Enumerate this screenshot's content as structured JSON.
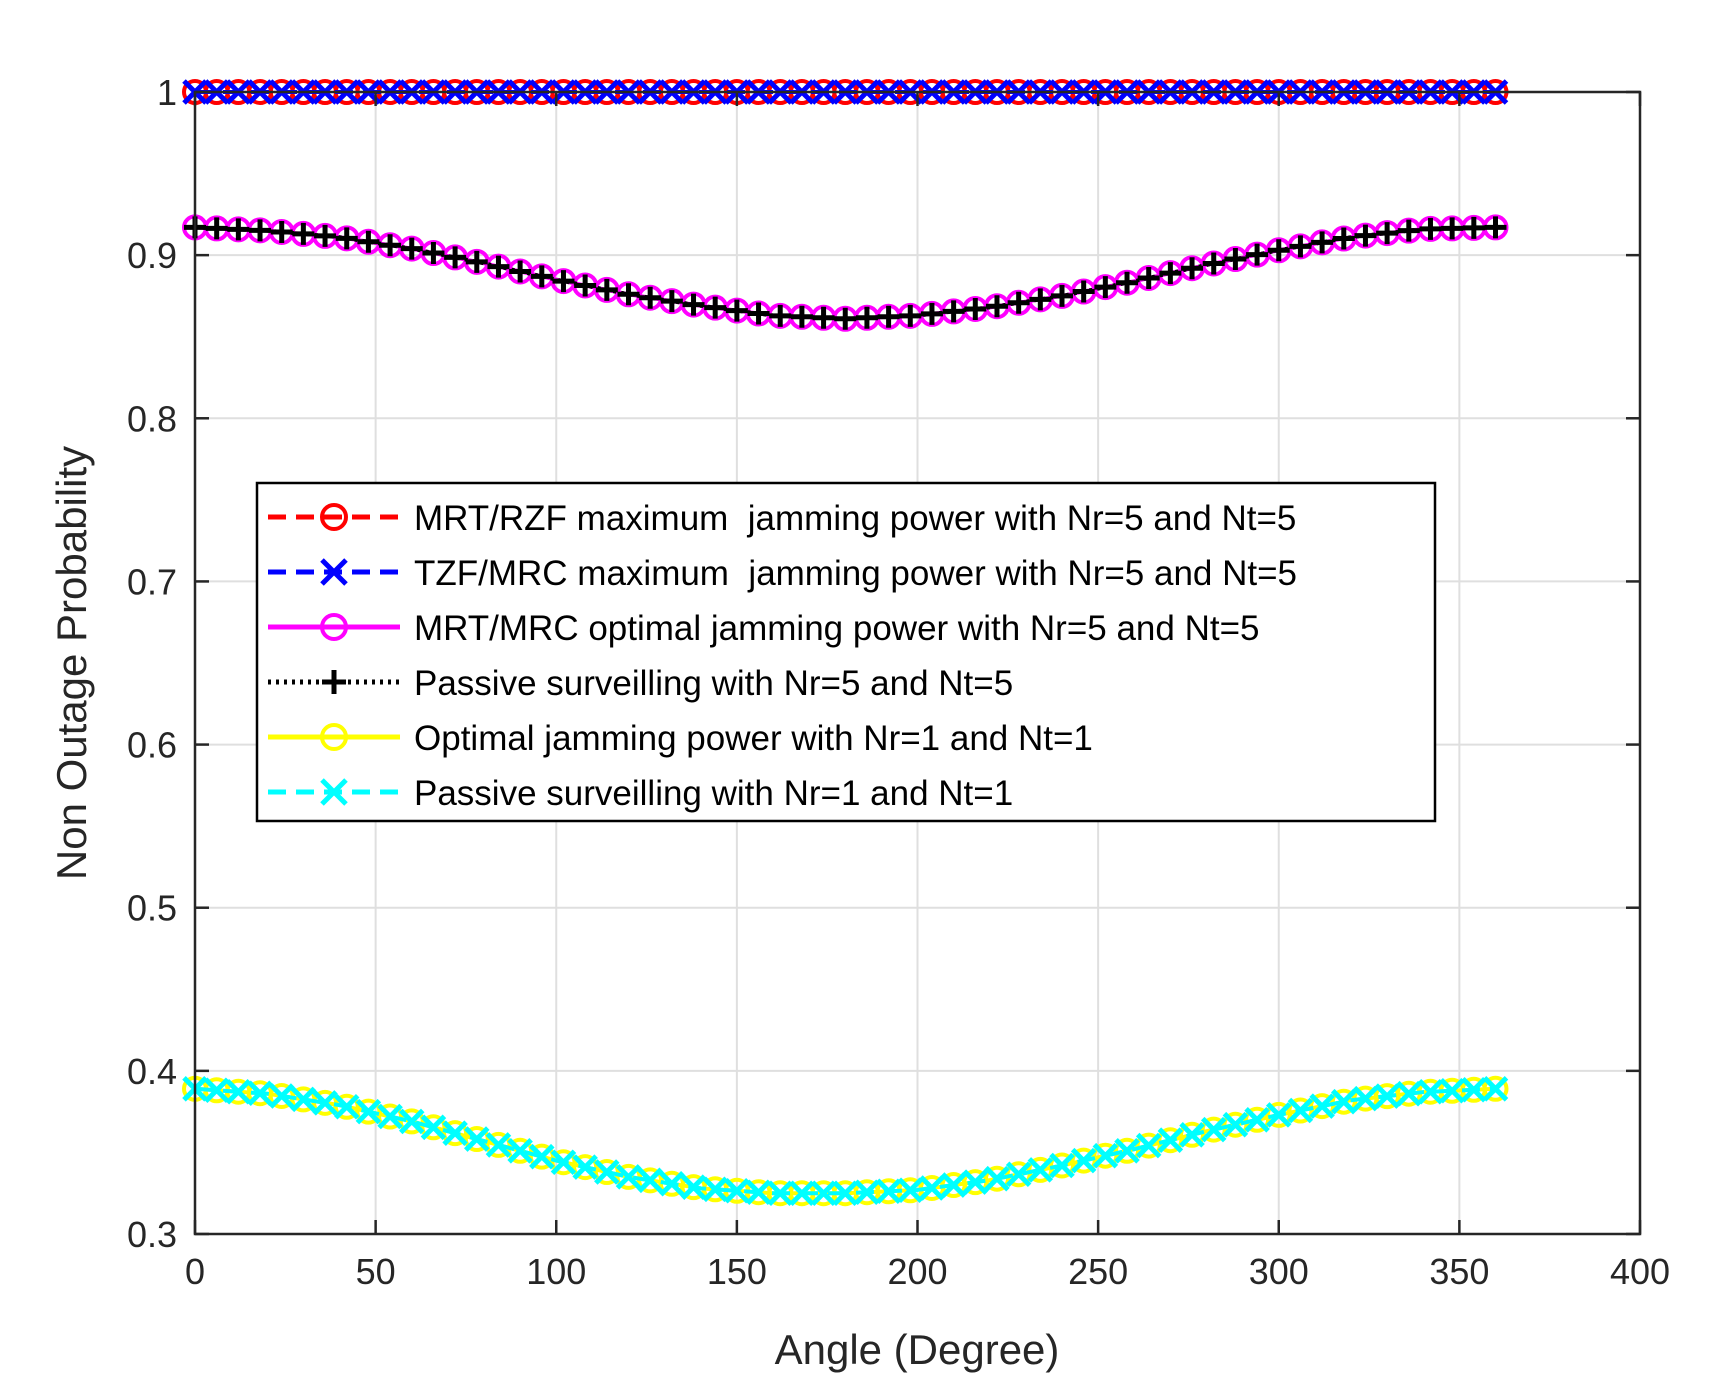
{
  "chart_data": {
    "type": "line",
    "title": "",
    "xlabel": "Angle (Degree)",
    "ylabel": "Non Outage Probability",
    "xlim": [
      0,
      400
    ],
    "ylim": [
      0.3,
      1
    ],
    "xticks": [
      "0",
      "50",
      "100",
      "150",
      "200",
      "250",
      "300",
      "350",
      "400"
    ],
    "yticks": [
      "0.3",
      "0.4",
      "0.5",
      "0.6",
      "0.7",
      "0.8",
      "0.9",
      "1"
    ],
    "grid": true,
    "legend_position": "center",
    "x": [
      0,
      20,
      40,
      60,
      80,
      100,
      120,
      140,
      160,
      180,
      200,
      220,
      240,
      260,
      280,
      300,
      320,
      340,
      360
    ],
    "series": [
      {
        "name": "MRT/RZF maximum  jamming power with Nr=5 and Nt=5",
        "color": "#ff0000",
        "line": "dashed",
        "marker": "circle",
        "values": [
          1,
          1,
          1,
          1,
          1,
          1,
          1,
          1,
          1,
          1,
          1,
          1,
          1,
          1,
          1,
          1,
          1,
          1,
          1
        ]
      },
      {
        "name": "TZF/MRC maximum  jamming power with Nr=5 and Nt=5",
        "color": "#0000ff",
        "line": "dashed",
        "marker": "x",
        "values": [
          1,
          1,
          1,
          1,
          1,
          1,
          1,
          1,
          1,
          1,
          1,
          1,
          1,
          1,
          1,
          1,
          1,
          1,
          1
        ]
      },
      {
        "name": "MRT/MRC optimal jamming power with Nr=5 and Nt=5",
        "color": "#ff00ff",
        "line": "solid",
        "marker": "circle",
        "values": [
          0.917,
          0.915,
          0.911,
          0.904,
          0.895,
          0.885,
          0.876,
          0.869,
          0.863,
          0.861,
          0.863,
          0.868,
          0.875,
          0.884,
          0.894,
          0.903,
          0.911,
          0.916,
          0.917
        ]
      },
      {
        "name": "Passive surveilling with Nr=5 and Nt=5",
        "color": "#000000",
        "line": "dotted",
        "marker": "plus",
        "values": [
          0.917,
          0.915,
          0.911,
          0.904,
          0.895,
          0.885,
          0.876,
          0.869,
          0.863,
          0.861,
          0.863,
          0.868,
          0.875,
          0.884,
          0.894,
          0.903,
          0.911,
          0.916,
          0.917
        ]
      },
      {
        "name": "Optimal jamming power with Nr=1 and Nt=1",
        "color": "#ffff00",
        "line": "solid",
        "marker": "circle",
        "values": [
          0.389,
          0.386,
          0.379,
          0.369,
          0.357,
          0.345,
          0.335,
          0.328,
          0.325,
          0.325,
          0.327,
          0.333,
          0.342,
          0.352,
          0.363,
          0.373,
          0.382,
          0.387,
          0.389
        ]
      },
      {
        "name": "Passive surveilling with Nr=1 and Nt=1",
        "color": "#00ffff",
        "line": "dashed",
        "marker": "x",
        "values": [
          0.389,
          0.386,
          0.379,
          0.369,
          0.357,
          0.345,
          0.335,
          0.328,
          0.325,
          0.325,
          0.327,
          0.333,
          0.342,
          0.352,
          0.363,
          0.373,
          0.382,
          0.387,
          0.389
        ]
      }
    ]
  }
}
